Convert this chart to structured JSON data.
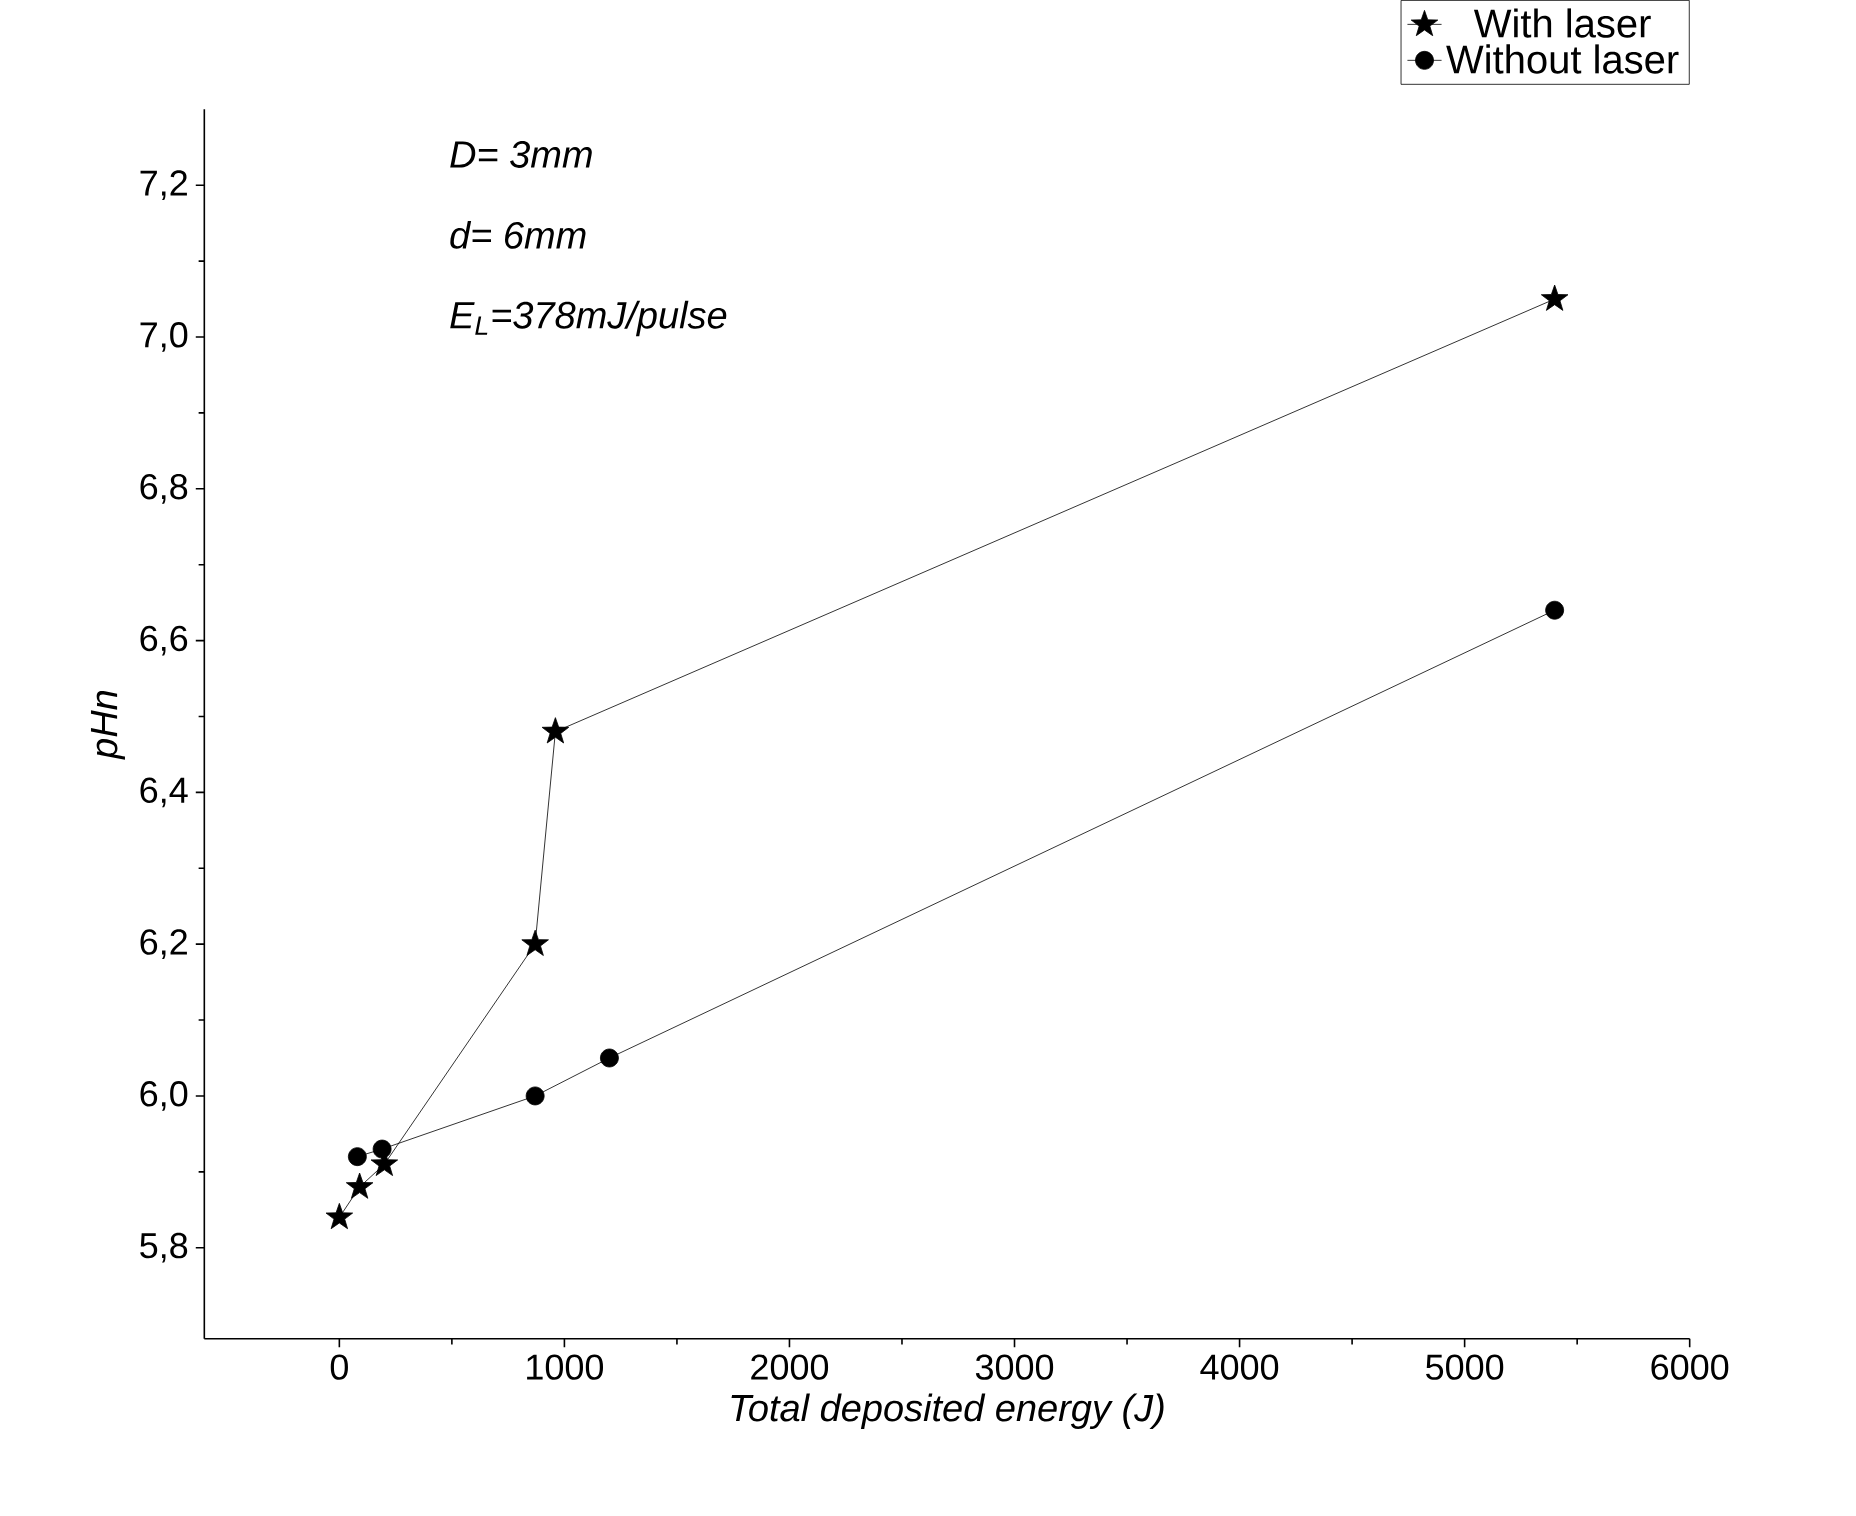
{
  "chart_data": {
    "type": "line",
    "xlabel": "Total deposited energy (J)",
    "ylabel": "pHn",
    "annotations": [
      "D= 3mm",
      "d= 6mm",
      "E$_{L}$=378mJ/pulse"
    ],
    "xlim": [
      -600,
      6000
    ],
    "xticks": [
      0,
      1000,
      2000,
      3000,
      4000,
      5000,
      6000
    ],
    "ylim": [
      5.68,
      7.3
    ],
    "yticks": [
      {
        "value": 5.8,
        "label": "5,8"
      },
      {
        "value": 6.0,
        "label": "6,0"
      },
      {
        "value": 6.2,
        "label": "6,2"
      },
      {
        "value": 6.4,
        "label": "6,4"
      },
      {
        "value": 6.6,
        "label": "6,6"
      },
      {
        "value": 6.8,
        "label": "6,8"
      },
      {
        "value": 7.0,
        "label": "7,0"
      },
      {
        "value": 7.2,
        "label": "7,2"
      }
    ],
    "legend": "top right",
    "grid": false,
    "line_style": "solid",
    "series": [
      {
        "name": "With laser",
        "color": "#000000",
        "marker": "star",
        "x": [
          0,
          90,
          200,
          870,
          960,
          5400
        ],
        "values": [
          5.84,
          5.88,
          5.91,
          6.2,
          6.48,
          7.05
        ]
      },
      {
        "name": "Without laser",
        "color": "#000000",
        "marker": "circle",
        "x": [
          80,
          190,
          870,
          1200,
          5400
        ],
        "values": [
          5.92,
          5.93,
          6.0,
          6.05,
          6.64
        ]
      }
    ]
  }
}
